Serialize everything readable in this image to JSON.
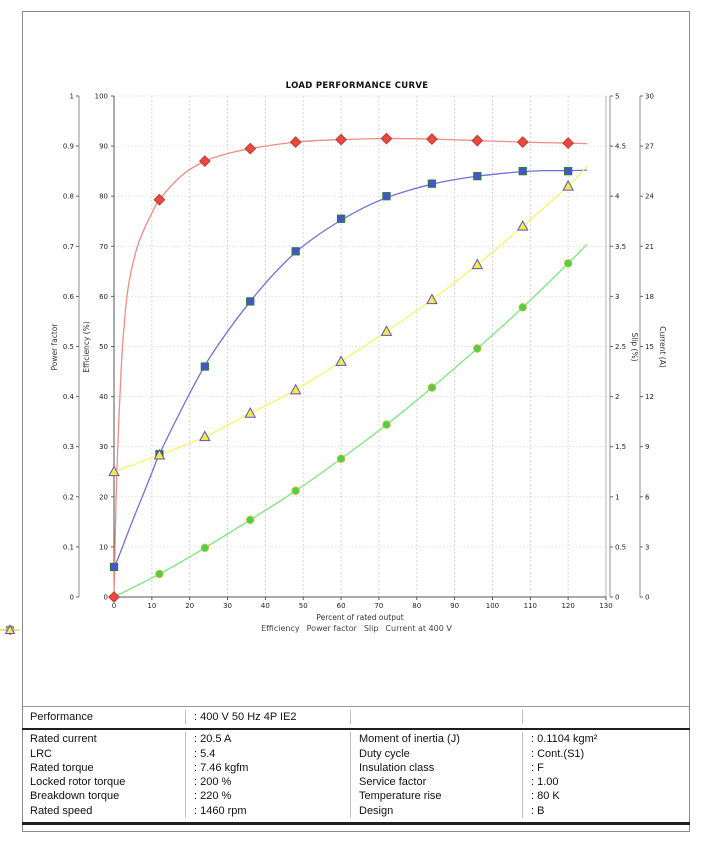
{
  "chart_data": {
    "type": "line",
    "title": "LOAD PERFORMANCE CURVE",
    "xlabel": "Percent of rated output",
    "grid": true,
    "legend_position": "bottom",
    "x_axis": {
      "min": 0,
      "max": 130,
      "tick_step": 10
    },
    "axes": [
      {
        "id": "pf",
        "title": "Power factor",
        "side": "left",
        "min": 0,
        "max": 1,
        "tick_step": 0.1
      },
      {
        "id": "eff",
        "title": "Efficiency (%)",
        "side": "left",
        "min": 0,
        "max": 100,
        "tick_step": 10
      },
      {
        "id": "slip",
        "title": "Slip (%)",
        "side": "right",
        "min": 0,
        "max": 5,
        "tick_step": 0.5
      },
      {
        "id": "cur",
        "title": "Current (A)",
        "side": "right",
        "min": 0,
        "max": 30,
        "tick_step": 3
      }
    ],
    "x": [
      0,
      12,
      24,
      36,
      48,
      60,
      72,
      84,
      96,
      108,
      120
    ],
    "series": [
      {
        "name": "Efficiency",
        "axis": "eff",
        "marker": "diamond",
        "marker_fill": "#E84A3F",
        "marker_stroke": "#C03A33",
        "line_color": "#F28B86",
        "values": [
          0,
          79.3,
          87.0,
          89.5,
          90.8,
          91.3,
          91.5,
          91.4,
          91.1,
          90.8,
          90.6
        ],
        "curve_x": [
          0,
          0.5,
          1,
          2,
          3,
          4,
          6,
          8,
          10,
          12,
          18,
          24,
          30,
          36,
          48,
          60,
          72,
          84,
          96,
          108,
          120,
          125
        ],
        "curve_y": [
          0,
          18,
          30,
          47,
          57,
          63,
          69.5,
          73.5,
          76.6,
          79.3,
          84.2,
          87,
          88.5,
          89.5,
          90.8,
          91.3,
          91.5,
          91.4,
          91.1,
          90.8,
          90.6,
          90.5
        ]
      },
      {
        "name": "Power factor",
        "axis": "pf",
        "marker": "square",
        "marker_fill": "#4454CD",
        "marker_stroke": "#2F7D32",
        "line_color": "#6F6FE0",
        "values": [
          0.06,
          0.285,
          0.46,
          0.59,
          0.69,
          0.755,
          0.8,
          0.825,
          0.84,
          0.85,
          0.85
        ],
        "curve_x": [
          0,
          2,
          4,
          6,
          8,
          10,
          12,
          18,
          24,
          30,
          36,
          42,
          48,
          54,
          60,
          66,
          72,
          78,
          84,
          90,
          96,
          102,
          108,
          114,
          120,
          125
        ],
        "curve_y": [
          0.057,
          0.095,
          0.135,
          0.173,
          0.21,
          0.248,
          0.285,
          0.377,
          0.462,
          0.53,
          0.59,
          0.643,
          0.688,
          0.723,
          0.752,
          0.777,
          0.797,
          0.812,
          0.824,
          0.833,
          0.84,
          0.845,
          0.849,
          0.851,
          0.851,
          0.852
        ]
      },
      {
        "name": "Slip",
        "axis": "slip",
        "marker": "circle",
        "marker_fill": "#41D54B",
        "marker_stroke": "#E8AE3C",
        "line_color": "#79E87C",
        "values": [
          0,
          0.23,
          0.49,
          0.77,
          1.06,
          1.38,
          1.72,
          2.09,
          2.48,
          2.89,
          3.33
        ],
        "curve_x": [
          0,
          12,
          24,
          36,
          48,
          60,
          72,
          84,
          96,
          108,
          120,
          125
        ],
        "curve_y": [
          0,
          0.23,
          0.49,
          0.77,
          1.06,
          1.38,
          1.72,
          2.09,
          2.48,
          2.89,
          3.33,
          3.52
        ]
      },
      {
        "name": "Current at 400 V",
        "axis": "cur",
        "marker": "triangle",
        "marker_fill": "#F4EC3F",
        "marker_stroke": "#5A50D2",
        "line_color": "#F7F263",
        "values": [
          7.5,
          8.5,
          9.6,
          11.0,
          12.4,
          14.1,
          15.9,
          17.8,
          19.9,
          22.2,
          24.6
        ],
        "curve_x": [
          0,
          12,
          24,
          36,
          48,
          60,
          72,
          84,
          96,
          108,
          120,
          125
        ],
        "curve_y": [
          7.5,
          8.5,
          9.6,
          11.0,
          12.4,
          14.1,
          15.9,
          17.8,
          19.9,
          22.2,
          24.6,
          25.8
        ]
      }
    ]
  },
  "spec_table": {
    "header": {
      "label": "Performance",
      "value": ": 400 V 50 Hz 4P IE2"
    },
    "left_rows": [
      {
        "label": "Rated current",
        "value": ": 20.5 A"
      },
      {
        "label": "LRC",
        "value": ": 5.4"
      },
      {
        "label": "Rated torque",
        "value": ": 7.46 kgfm"
      },
      {
        "label": "Locked rotor torque",
        "value": ": 200 %"
      },
      {
        "label": "Breakdown torque",
        "value": ": 220 %"
      },
      {
        "label": "Rated speed",
        "value": ": 1460 rpm"
      }
    ],
    "right_rows": [
      {
        "label": "Moment of inertia (J)",
        "value": ": 0.1104 kgm²"
      },
      {
        "label": "Duty cycle",
        "value": ": Cont.(S1)"
      },
      {
        "label": "Insulation class",
        "value": ": F"
      },
      {
        "label": "Service factor",
        "value": ": 1.00"
      },
      {
        "label": "Temperature rise",
        "value": ": 80 K"
      },
      {
        "label": "Design",
        "value": ": B"
      }
    ]
  }
}
